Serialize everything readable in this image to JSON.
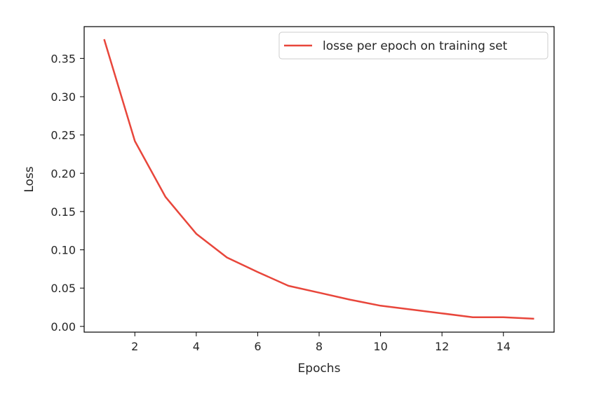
{
  "chart_data": {
    "type": "line",
    "xlabel": "Epochs",
    "ylabel": "Loss",
    "xlim": [
      0.35,
      15.65
    ],
    "ylim": [
      -0.0075,
      0.3915
    ],
    "xticks": [
      2,
      4,
      6,
      8,
      10,
      12,
      14
    ],
    "yticks": [
      0.0,
      0.05,
      0.1,
      0.15,
      0.2,
      0.25,
      0.3,
      0.35
    ],
    "ytick_labels": [
      "0.00",
      "0.05",
      "0.10",
      "0.15",
      "0.20",
      "0.25",
      "0.30",
      "0.35"
    ],
    "grid": false,
    "legend_position": "top-right",
    "series": [
      {
        "name": "losse per epoch on training set",
        "color": "#e8463b",
        "x": [
          1,
          2,
          3,
          4,
          5,
          6,
          7,
          8,
          9,
          10,
          11,
          12,
          13,
          14,
          15
        ],
        "y": [
          0.375,
          0.242,
          0.169,
          0.121,
          0.09,
          0.071,
          0.053,
          0.044,
          0.035,
          0.027,
          0.022,
          0.017,
          0.012,
          0.012,
          0.01
        ]
      }
    ]
  }
}
